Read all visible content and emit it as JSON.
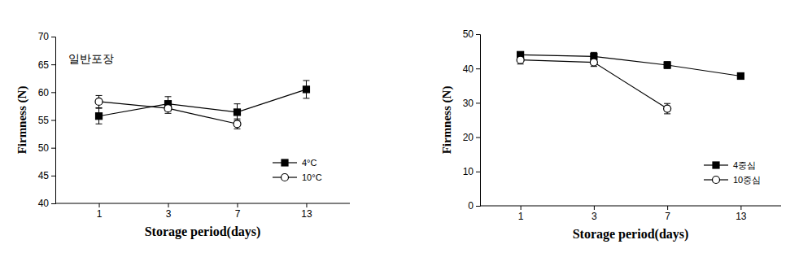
{
  "chart_data": [
    {
      "type": "line",
      "annotation": "일반포장",
      "x_label": "Storage period(days)",
      "y_label": "Firmness (N)",
      "categories": [
        "1",
        "3",
        "7",
        "13"
      ],
      "ylim": [
        40,
        70
      ],
      "yticks": [
        40,
        45,
        50,
        55,
        60,
        65,
        70
      ],
      "grid": false,
      "legend": "lower right",
      "series": [
        {
          "name": "4°C",
          "color": "#000000",
          "marker": "square",
          "values": [
            55.7,
            57.9,
            56.4,
            60.5
          ],
          "errors": [
            1.4,
            1.3,
            1.5,
            1.6
          ]
        },
        {
          "name": "10°C",
          "color": "#000000",
          "marker": "open-circle",
          "values": [
            58.3,
            57.1,
            54.3,
            null
          ],
          "errors": [
            1.1,
            0.9,
            0.9,
            null
          ]
        }
      ]
    },
    {
      "type": "line",
      "x_label": "Storage period(days)",
      "y_label": "Firmness (N)",
      "categories": [
        "1",
        "3",
        "7",
        "13"
      ],
      "ylim": [
        0,
        50
      ],
      "yticks": [
        0,
        10,
        20,
        30,
        40,
        50
      ],
      "grid": false,
      "legend": "lower right",
      "series": [
        {
          "name": "4중심",
          "color": "#000000",
          "marker": "square",
          "values": [
            44.0,
            43.5,
            41.0,
            37.8
          ],
          "errors": [
            0.7,
            1.2,
            1.0,
            0.9
          ]
        },
        {
          "name": "10중심",
          "color": "#000000",
          "marker": "open-circle",
          "values": [
            42.5,
            41.8,
            28.3,
            null
          ],
          "errors": [
            1.2,
            1.2,
            1.5,
            null
          ]
        }
      ]
    }
  ]
}
